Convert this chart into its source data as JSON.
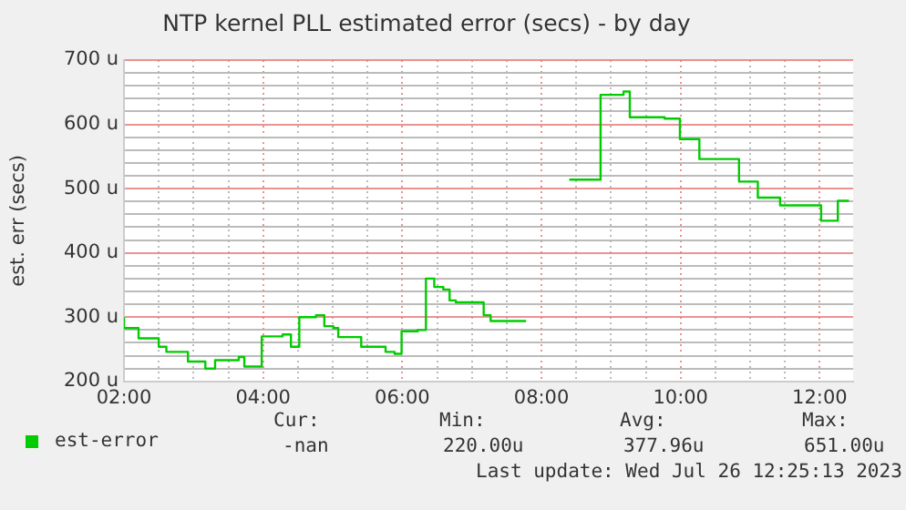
{
  "chart_data": {
    "type": "step",
    "title": "NTP kernel PLL estimated error (secs) - by day",
    "ylabel": "est. err (secs)",
    "series": [
      {
        "name": "est-error",
        "color": "#00cc00",
        "x": [
          2,
          2.21,
          2.5,
          2.61,
          2.92,
          3.17,
          3.31,
          3.65,
          3.73,
          3.98,
          4.28,
          4.4,
          4.52,
          4.76,
          4.88,
          5.01,
          5.08,
          5.41,
          5.76,
          5.89,
          5.99,
          6.22,
          6.34,
          6.46,
          6.59,
          6.68,
          6.77,
          7.17,
          7.27,
          7.52,
          7.78,
          7.93,
          8.4,
          8.85,
          9.18,
          9.27,
          9.77,
          9.99,
          10.27,
          10.84,
          11.11,
          11.43,
          12.02,
          12.26,
          12.32,
          12.42
        ],
        "values": [
          300,
          283,
          267,
          254,
          246,
          231,
          220,
          233,
          238,
          223,
          270,
          273,
          254,
          300,
          303,
          286,
          283,
          269,
          254,
          246,
          243,
          278,
          280,
          360,
          347,
          343,
          326,
          323,
          303,
          294,
          294,
          null,
          514,
          514,
          646,
          651,
          611,
          609,
          577,
          546,
          511,
          486,
          474,
          450,
          481,
          481
        ]
      }
    ],
    "xlim": [
      2,
      12.48
    ],
    "xticks": [
      {
        "value": 2,
        "label": "02:00"
      },
      {
        "value": 2.5,
        "label": null
      },
      {
        "value": 3,
        "label": null
      },
      {
        "value": 3.5,
        "label": null
      },
      {
        "value": 4,
        "label": "04:00"
      },
      {
        "value": 4.5,
        "label": null
      },
      {
        "value": 5,
        "label": null
      },
      {
        "value": 5.5,
        "label": null
      },
      {
        "value": 6,
        "label": "06:00"
      },
      {
        "value": 6.5,
        "label": null
      },
      {
        "value": 7,
        "label": null
      },
      {
        "value": 7.5,
        "label": null
      },
      {
        "value": 8,
        "label": "08:00"
      },
      {
        "value": 8.5,
        "label": null
      },
      {
        "value": 9,
        "label": null
      },
      {
        "value": 9.5,
        "label": null
      },
      {
        "value": 10,
        "label": "10:00"
      },
      {
        "value": 10.5,
        "label": null
      },
      {
        "value": 11,
        "label": null
      },
      {
        "value": 11.5,
        "label": null
      },
      {
        "value": 12,
        "label": "12:00"
      }
    ],
    "ylim": [
      200,
      700
    ],
    "yticks": [
      {
        "value": 200,
        "label": "200 u"
      },
      {
        "value": 220,
        "label": null
      },
      {
        "value": 240,
        "label": null
      },
      {
        "value": 260,
        "label": null
      },
      {
        "value": 280,
        "label": null
      },
      {
        "value": 300,
        "label": "300 u"
      },
      {
        "value": 320,
        "label": null
      },
      {
        "value": 340,
        "label": null
      },
      {
        "value": 360,
        "label": null
      },
      {
        "value": 380,
        "label": null
      },
      {
        "value": 400,
        "label": "400 u"
      },
      {
        "value": 420,
        "label": null
      },
      {
        "value": 440,
        "label": null
      },
      {
        "value": 460,
        "label": null
      },
      {
        "value": 480,
        "label": null
      },
      {
        "value": 500,
        "label": "500 u"
      },
      {
        "value": 520,
        "label": null
      },
      {
        "value": 540,
        "label": null
      },
      {
        "value": 560,
        "label": null
      },
      {
        "value": 580,
        "label": null
      },
      {
        "value": 600,
        "label": "600 u"
      },
      {
        "value": 620,
        "label": null
      },
      {
        "value": 640,
        "label": null
      },
      {
        "value": 660,
        "label": null
      },
      {
        "value": 680,
        "label": null
      },
      {
        "value": 700,
        "label": "700 u"
      }
    ],
    "grid": true,
    "legend": "bottom",
    "annotations": [
      "Cur:",
      "Min:",
      "Avg:",
      "Max:",
      "-nan",
      "220.00u",
      "377.96u",
      "651.00u",
      "Last update: Wed Jul 26 12:25:13 2023"
    ]
  }
}
